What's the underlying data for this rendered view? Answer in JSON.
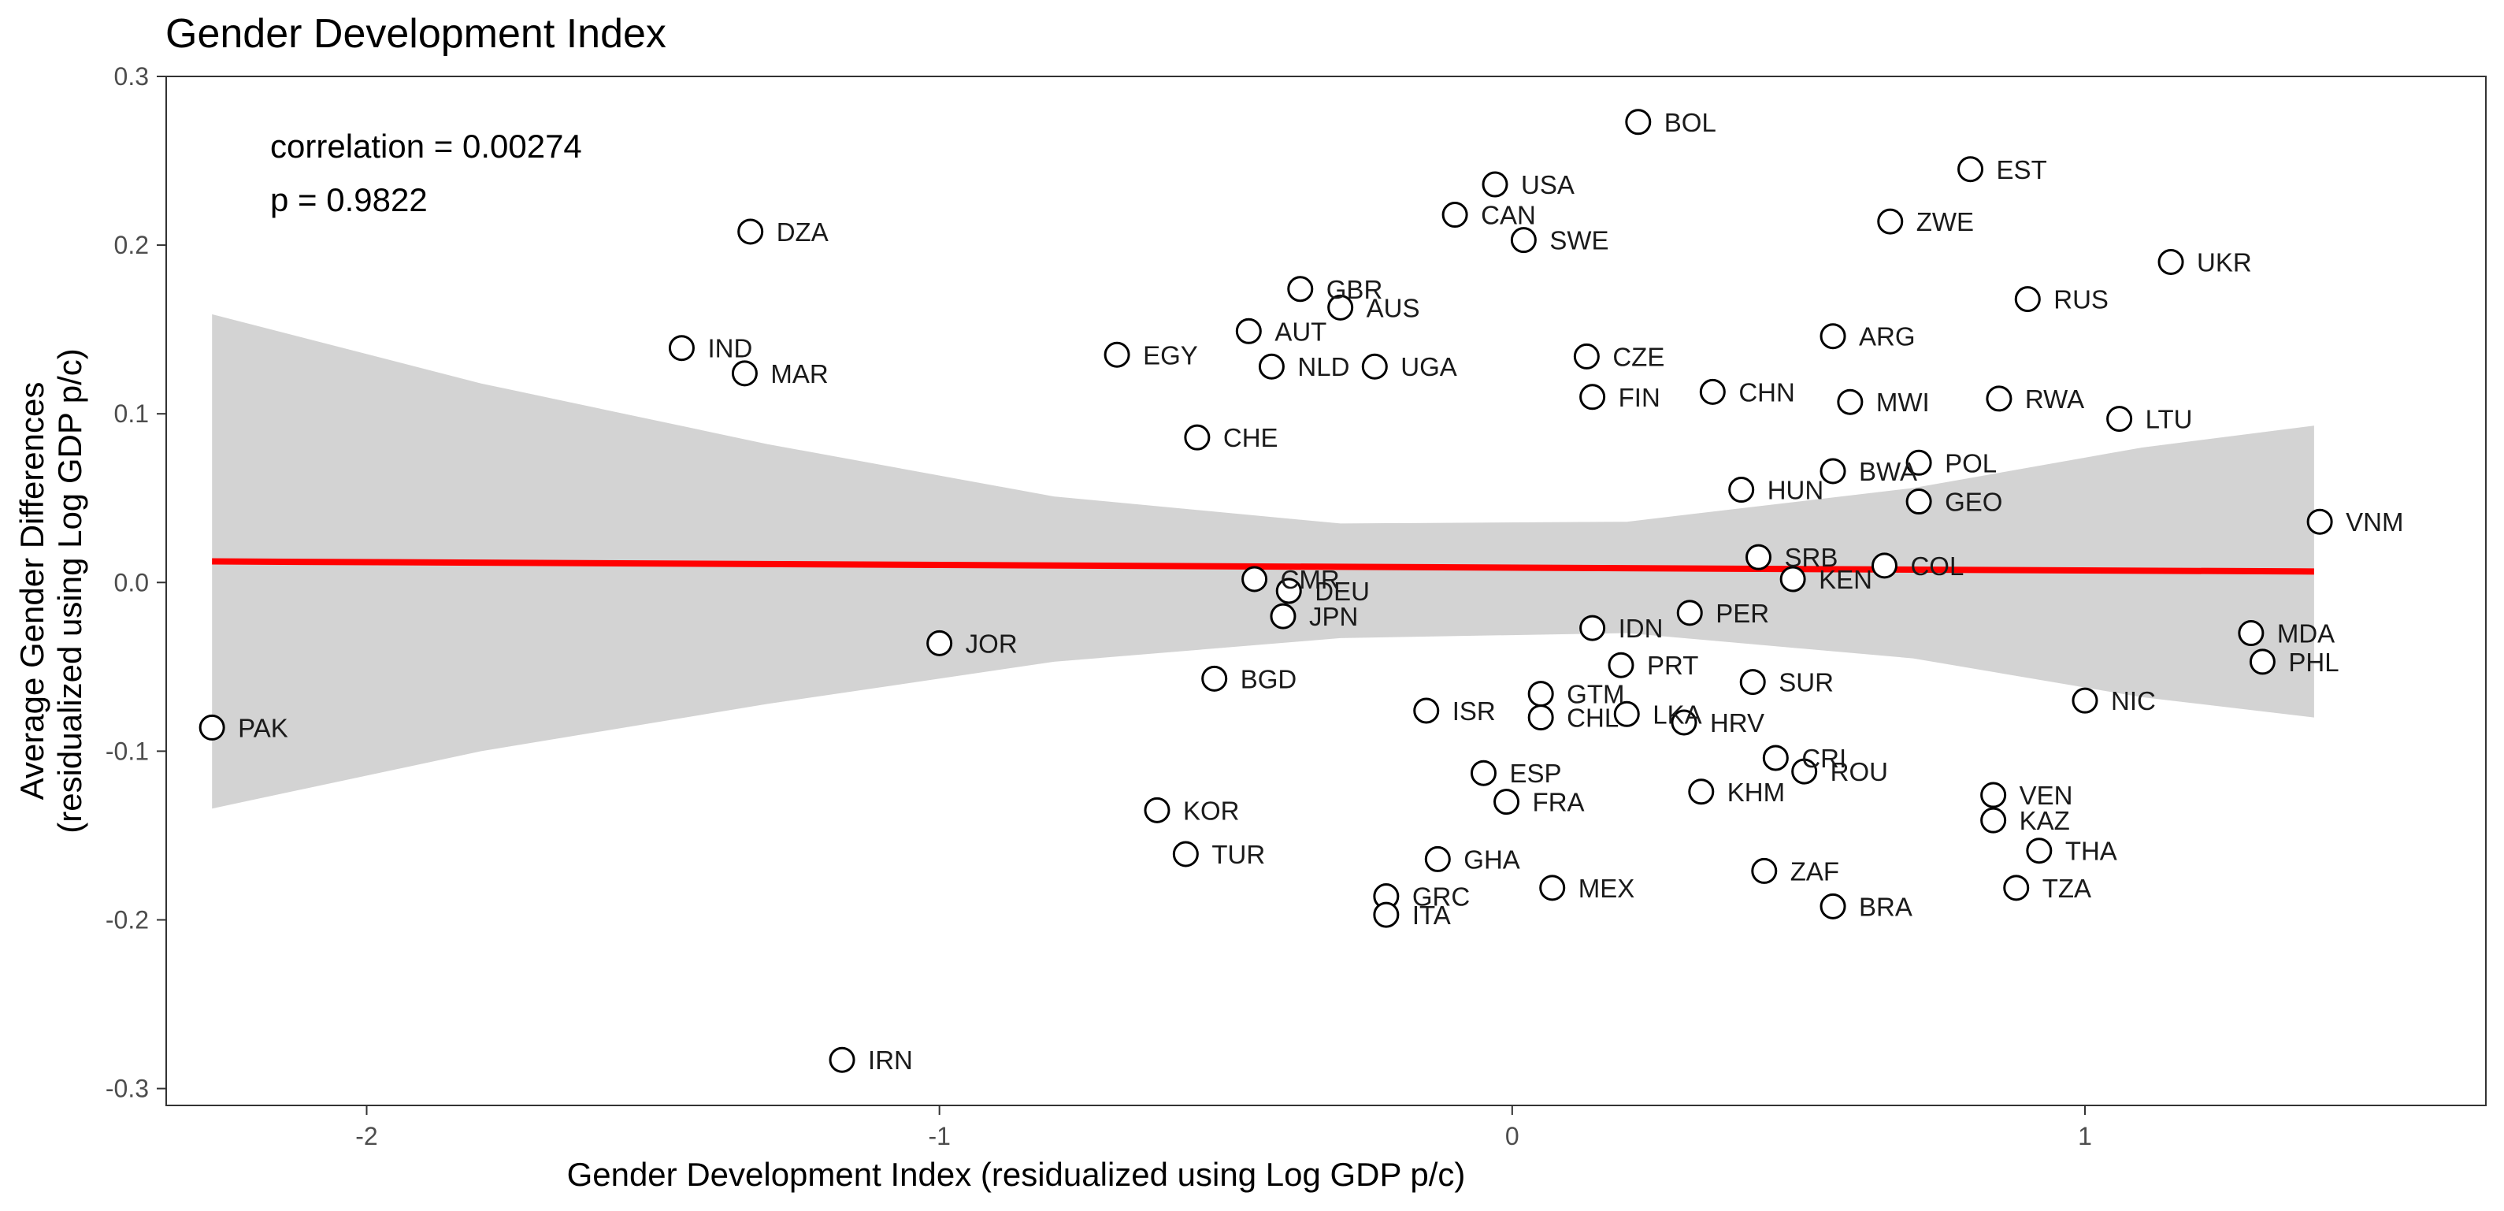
{
  "chart_data": {
    "type": "scatter",
    "title": "Gender Development Index",
    "xlabel": "Gender Development Index (residualized using Log GDP p/c)",
    "ylabel_lines": [
      "Average Gender Differences",
      "(residualized using Log GDP p/c)"
    ],
    "xlim": [
      -2.35,
      1.7
    ],
    "ylim": [
      -0.31,
      0.3
    ],
    "x_ticks": [
      -2,
      -1,
      0,
      1
    ],
    "x_tick_labels": [
      "-2",
      "-1",
      "0",
      "1"
    ],
    "y_ticks": [
      -0.3,
      -0.2,
      -0.1,
      0.0,
      0.1,
      0.2,
      0.3
    ],
    "y_tick_labels": [
      "-0.3",
      "-0.2",
      "-0.1",
      "0.0",
      "0.1",
      "0.2",
      "0.3"
    ],
    "grid": false,
    "annotations": [
      "correlation = 0.00274",
      "p = 0.9822"
    ],
    "colors": {
      "fit_line": "#ff0000",
      "confidence_band": "#d3d3d3",
      "points_fill": "#ffffff",
      "points_stroke": "#000000"
    },
    "fit": {
      "x": [
        -2.27,
        1.4
      ],
      "y": [
        0.0125,
        0.0065
      ]
    },
    "confidence_band": {
      "x": [
        -2.27,
        -1.8,
        -1.3,
        -0.8,
        -0.3,
        0.2,
        0.7,
        1.1,
        1.4
      ],
      "upper": [
        0.159,
        0.118,
        0.082,
        0.051,
        0.035,
        0.036,
        0.056,
        0.08,
        0.093
      ],
      "lower": [
        -0.134,
        -0.1,
        -0.072,
        -0.047,
        -0.033,
        -0.03,
        -0.045,
        -0.068,
        -0.08
      ]
    },
    "points": [
      {
        "label": "BOL",
        "x": 0.22,
        "y": 0.273
      },
      {
        "label": "EST",
        "x": 0.8,
        "y": 0.245
      },
      {
        "label": "USA",
        "x": -0.03,
        "y": 0.236
      },
      {
        "label": "CAN",
        "x": -0.1,
        "y": 0.218
      },
      {
        "label": "ZWE",
        "x": 0.66,
        "y": 0.214
      },
      {
        "label": "DZA",
        "x": -1.33,
        "y": 0.208
      },
      {
        "label": "SWE",
        "x": 0.02,
        "y": 0.203
      },
      {
        "label": "UKR",
        "x": 1.15,
        "y": 0.19
      },
      {
        "label": "GBR",
        "x": -0.37,
        "y": 0.174
      },
      {
        "label": "RUS",
        "x": 0.9,
        "y": 0.168
      },
      {
        "label": "AUS",
        "x": -0.3,
        "y": 0.163
      },
      {
        "label": "AUT",
        "x": -0.46,
        "y": 0.149
      },
      {
        "label": "ARG",
        "x": 0.56,
        "y": 0.146
      },
      {
        "label": "IND",
        "x": -1.45,
        "y": 0.139
      },
      {
        "label": "EGY",
        "x": -0.69,
        "y": 0.135
      },
      {
        "label": "CZE",
        "x": 0.13,
        "y": 0.134
      },
      {
        "label": "NLD",
        "x": -0.42,
        "y": 0.128
      },
      {
        "label": "UGA",
        "x": -0.24,
        "y": 0.128
      },
      {
        "label": "MAR",
        "x": -1.34,
        "y": 0.124
      },
      {
        "label": "CHN",
        "x": 0.35,
        "y": 0.113
      },
      {
        "label": "FIN",
        "x": 0.14,
        "y": 0.11
      },
      {
        "label": "RWA",
        "x": 0.85,
        "y": 0.109
      },
      {
        "label": "MWI",
        "x": 0.59,
        "y": 0.107
      },
      {
        "label": "LTU",
        "x": 1.06,
        "y": 0.097
      },
      {
        "label": "CHE",
        "x": -0.55,
        "y": 0.086
      },
      {
        "label": "POL",
        "x": 0.71,
        "y": 0.071
      },
      {
        "label": "BWA",
        "x": 0.56,
        "y": 0.066
      },
      {
        "label": "HUN",
        "x": 0.4,
        "y": 0.055
      },
      {
        "label": "GEO",
        "x": 0.71,
        "y": 0.048
      },
      {
        "label": "VNM",
        "x": 1.41,
        "y": 0.036
      },
      {
        "label": "SRB",
        "x": 0.43,
        "y": 0.015
      },
      {
        "label": "COL",
        "x": 0.65,
        "y": 0.01
      },
      {
        "label": "CMR",
        "x": -0.45,
        "y": 0.002
      },
      {
        "label": "KEN",
        "x": 0.49,
        "y": 0.002
      },
      {
        "label": "DEU",
        "x": -0.39,
        "y": -0.005
      },
      {
        "label": "PER",
        "x": 0.31,
        "y": -0.018
      },
      {
        "label": "JPN",
        "x": -0.4,
        "y": -0.02
      },
      {
        "label": "IDN",
        "x": 0.14,
        "y": -0.027
      },
      {
        "label": "MDA",
        "x": 1.29,
        "y": -0.03
      },
      {
        "label": "JOR",
        "x": -1.0,
        "y": -0.036
      },
      {
        "label": "PHL",
        "x": 1.31,
        "y": -0.047
      },
      {
        "label": "PRT",
        "x": 0.19,
        "y": -0.049
      },
      {
        "label": "BGD",
        "x": -0.52,
        "y": -0.057
      },
      {
        "label": "SUR",
        "x": 0.42,
        "y": -0.059
      },
      {
        "label": "GTM",
        "x": 0.05,
        "y": -0.066
      },
      {
        "label": "NIC",
        "x": 1.0,
        "y": -0.07
      },
      {
        "label": "ISR",
        "x": -0.15,
        "y": -0.076
      },
      {
        "label": "CHL",
        "x": 0.05,
        "y": -0.08
      },
      {
        "label": "LKA",
        "x": 0.2,
        "y": -0.078
      },
      {
        "label": "HRV",
        "x": 0.3,
        "y": -0.083
      },
      {
        "label": "PAK",
        "x": -2.27,
        "y": -0.086
      },
      {
        "label": "CRI",
        "x": 0.46,
        "y": -0.104
      },
      {
        "label": "ROU",
        "x": 0.51,
        "y": -0.112
      },
      {
        "label": "ESP",
        "x": -0.05,
        "y": -0.113
      },
      {
        "label": "KHM",
        "x": 0.33,
        "y": -0.124
      },
      {
        "label": "VEN",
        "x": 0.84,
        "y": -0.126
      },
      {
        "label": "FRA",
        "x": -0.01,
        "y": -0.13
      },
      {
        "label": "KOR",
        "x": -0.62,
        "y": -0.135
      },
      {
        "label": "KAZ",
        "x": 0.84,
        "y": -0.141
      },
      {
        "label": "THA",
        "x": 0.92,
        "y": -0.159
      },
      {
        "label": "TUR",
        "x": -0.57,
        "y": -0.161
      },
      {
        "label": "GHA",
        "x": -0.13,
        "y": -0.164
      },
      {
        "label": "ZAF",
        "x": 0.44,
        "y": -0.171
      },
      {
        "label": "MEX",
        "x": 0.07,
        "y": -0.181
      },
      {
        "label": "TZA",
        "x": 0.88,
        "y": -0.181
      },
      {
        "label": "GRC",
        "x": -0.22,
        "y": -0.186
      },
      {
        "label": "BRA",
        "x": 0.56,
        "y": -0.192
      },
      {
        "label": "ITA",
        "x": -0.22,
        "y": -0.197
      },
      {
        "label": "IRN",
        "x": -1.17,
        "y": -0.283
      }
    ]
  }
}
